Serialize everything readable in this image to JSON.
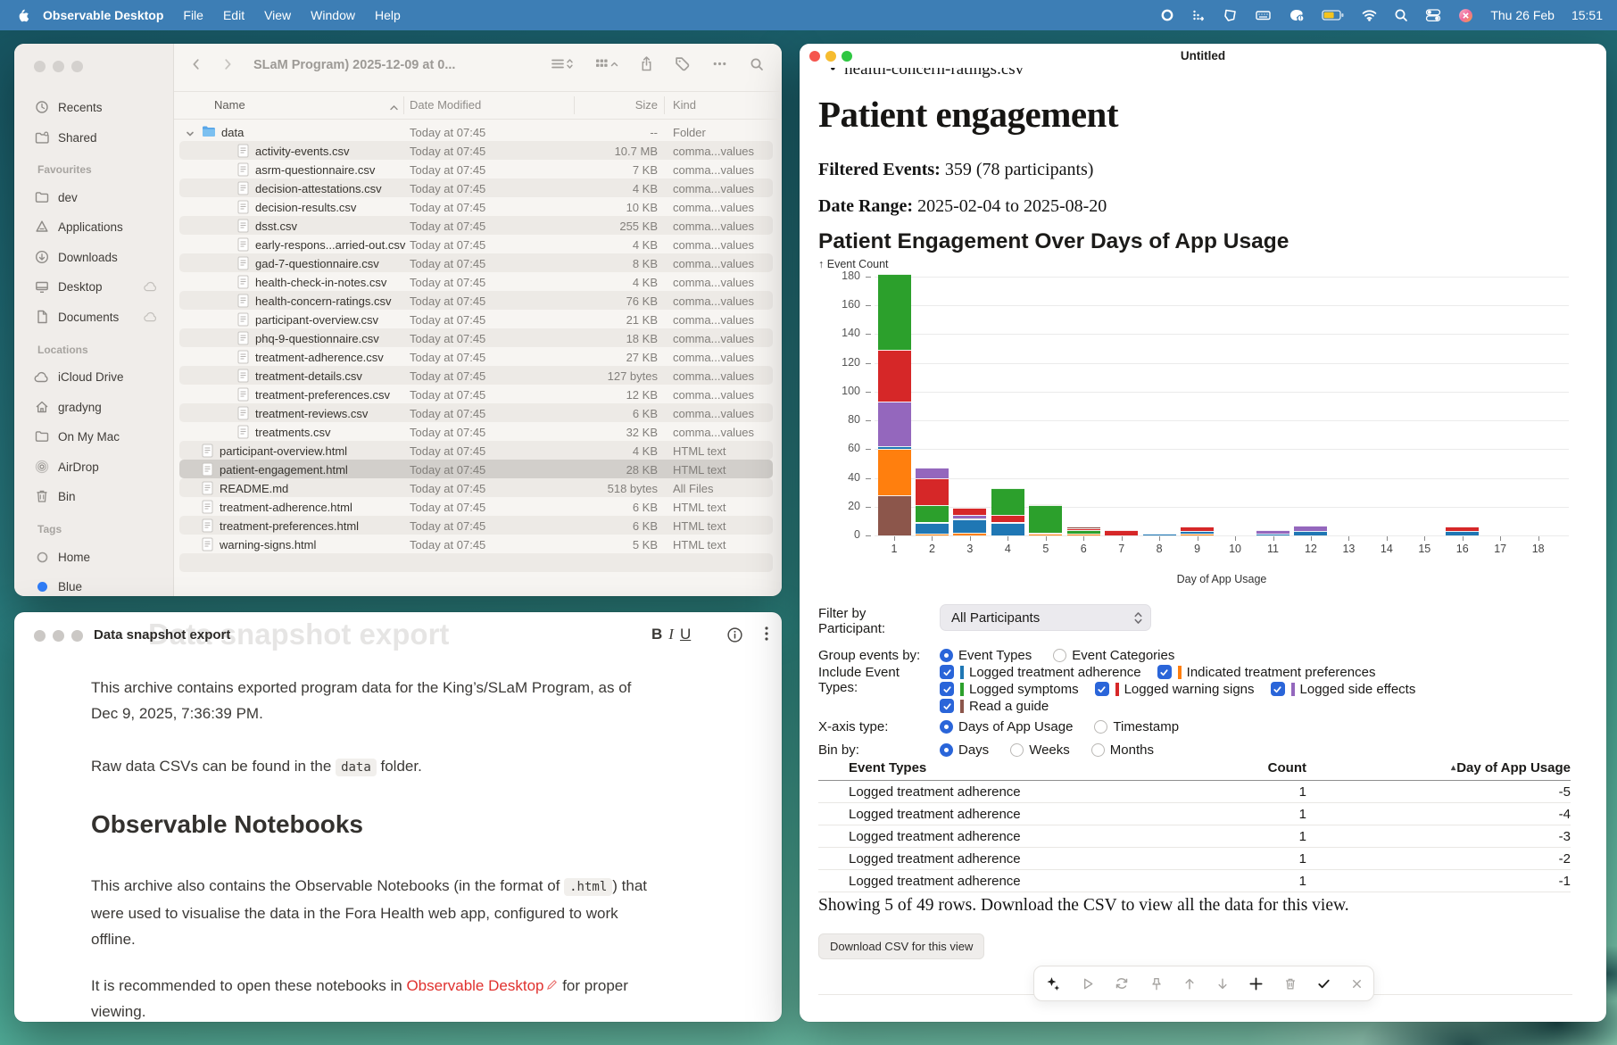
{
  "colors": {
    "menubar_blue": "#3d7eb5",
    "accent_blue": "#2a65d9",
    "link_red": "#e0312e",
    "battery_fill": "#f5c31d",
    "selection_gray": "#d2cfcb"
  },
  "menubar": {
    "app_name": "Observable Desktop",
    "menus": [
      "File",
      "Edit",
      "View",
      "Window",
      "Help"
    ],
    "status_icons": [
      "ring",
      "shortcuts",
      "shape",
      "keyboard",
      "brush-alert",
      "battery",
      "wifi",
      "search",
      "toggles",
      "avatar"
    ],
    "clock_date": "Thu 26 Feb",
    "clock_time": "15:51"
  },
  "finder": {
    "window_title": "SLaM Program) 2025-12-09 at 0...",
    "toolbar_icons": [
      "list-view",
      "grid-view",
      "share",
      "tag",
      "ellipsis",
      "search"
    ],
    "columns": [
      "Name",
      "Date Modified",
      "Size",
      "Kind"
    ],
    "sort_column": "Name",
    "sidebar": {
      "top_items": [
        {
          "label": "Recents",
          "icon": "clock"
        },
        {
          "label": "Shared",
          "icon": "shared-folder"
        }
      ],
      "sections": [
        {
          "title": "Favourites",
          "items": [
            {
              "label": "dev",
              "icon": "folder"
            },
            {
              "label": "Applications",
              "icon": "applications"
            },
            {
              "label": "Downloads",
              "icon": "downloads"
            },
            {
              "label": "Desktop",
              "icon": "desktop",
              "badge": "cloud"
            },
            {
              "label": "Documents",
              "icon": "document",
              "badge": "cloud"
            }
          ]
        },
        {
          "title": "Locations",
          "items": [
            {
              "label": "iCloud Drive",
              "icon": "cloud"
            },
            {
              "label": "gradyng",
              "icon": "home"
            },
            {
              "label": "On My Mac",
              "icon": "folder"
            },
            {
              "label": "AirDrop",
              "icon": "airdrop"
            },
            {
              "label": "Bin",
              "icon": "trash"
            }
          ]
        },
        {
          "title": "Tags",
          "items": [
            {
              "label": "Home",
              "icon": "tag-gray"
            },
            {
              "label": "Blue",
              "icon": "tag-blue"
            }
          ]
        }
      ]
    },
    "rows": [
      {
        "name": "data",
        "date": "Today at 07:45",
        "size": "--",
        "kind": "Folder",
        "icon": "folder-file",
        "indent": 0,
        "disclosure": true
      },
      {
        "name": "activity-events.csv",
        "date": "Today at 07:45",
        "size": "10.7 MB",
        "kind": "comma...values",
        "icon": "doc-file",
        "indent": 1
      },
      {
        "name": "asrm-questionnaire.csv",
        "date": "Today at 07:45",
        "size": "7 KB",
        "kind": "comma...values",
        "icon": "doc-file",
        "indent": 1
      },
      {
        "name": "decision-attestations.csv",
        "date": "Today at 07:45",
        "size": "4 KB",
        "kind": "comma...values",
        "icon": "doc-file",
        "indent": 1
      },
      {
        "name": "decision-results.csv",
        "date": "Today at 07:45",
        "size": "10 KB",
        "kind": "comma...values",
        "icon": "doc-file",
        "indent": 1
      },
      {
        "name": "dsst.csv",
        "date": "Today at 07:45",
        "size": "255 KB",
        "kind": "comma...values",
        "icon": "doc-file",
        "indent": 1
      },
      {
        "name": "early-respons...arried-out.csv",
        "date": "Today at 07:45",
        "size": "4 KB",
        "kind": "comma...values",
        "icon": "doc-file",
        "indent": 1
      },
      {
        "name": "gad-7-questionnaire.csv",
        "date": "Today at 07:45",
        "size": "8 KB",
        "kind": "comma...values",
        "icon": "doc-file",
        "indent": 1
      },
      {
        "name": "health-check-in-notes.csv",
        "date": "Today at 07:45",
        "size": "4 KB",
        "kind": "comma...values",
        "icon": "doc-file",
        "indent": 1
      },
      {
        "name": "health-concern-ratings.csv",
        "date": "Today at 07:45",
        "size": "76 KB",
        "kind": "comma...values",
        "icon": "doc-file",
        "indent": 1
      },
      {
        "name": "participant-overview.csv",
        "date": "Today at 07:45",
        "size": "21 KB",
        "kind": "comma...values",
        "icon": "doc-file",
        "indent": 1
      },
      {
        "name": "phq-9-questionnaire.csv",
        "date": "Today at 07:45",
        "size": "18 KB",
        "kind": "comma...values",
        "icon": "doc-file",
        "indent": 1
      },
      {
        "name": "treatment-adherence.csv",
        "date": "Today at 07:45",
        "size": "27 KB",
        "kind": "comma...values",
        "icon": "doc-file",
        "indent": 1
      },
      {
        "name": "treatment-details.csv",
        "date": "Today at 07:45",
        "size": "127 bytes",
        "kind": "comma...values",
        "icon": "doc-file",
        "indent": 1
      },
      {
        "name": "treatment-preferences.csv",
        "date": "Today at 07:45",
        "size": "12 KB",
        "kind": "comma...values",
        "icon": "doc-file",
        "indent": 1
      },
      {
        "name": "treatment-reviews.csv",
        "date": "Today at 07:45",
        "size": "6 KB",
        "kind": "comma...values",
        "icon": "doc-file",
        "indent": 1
      },
      {
        "name": "treatments.csv",
        "date": "Today at 07:45",
        "size": "32 KB",
        "kind": "comma...values",
        "icon": "doc-file",
        "indent": 1
      },
      {
        "name": "participant-overview.html",
        "date": "Today at 07:45",
        "size": "4 KB",
        "kind": "HTML text",
        "icon": "doc-file",
        "indent": 0
      },
      {
        "name": "patient-engagement.html",
        "date": "Today at 07:45",
        "size": "28 KB",
        "kind": "HTML text",
        "icon": "doc-file",
        "indent": 0,
        "selected": true
      },
      {
        "name": "README.md",
        "date": "Today at 07:45",
        "size": "518 bytes",
        "kind": "All Files",
        "icon": "doc-file",
        "indent": 0
      },
      {
        "name": "treatment-adherence.html",
        "date": "Today at 07:45",
        "size": "6 KB",
        "kind": "HTML text",
        "icon": "doc-file",
        "indent": 0
      },
      {
        "name": "treatment-preferences.html",
        "date": "Today at 07:45",
        "size": "6 KB",
        "kind": "HTML text",
        "icon": "doc-file",
        "indent": 0
      },
      {
        "name": "warning-signs.html",
        "date": "Today at 07:45",
        "size": "5 KB",
        "kind": "HTML text",
        "icon": "doc-file",
        "indent": 0
      }
    ]
  },
  "notes": {
    "title": "Data snapshot export",
    "ghost_heading": "Data snapshot export",
    "format_bold": "B",
    "format_italic": "I",
    "format_underline": "U",
    "p1": "This archive contains exported program data for the King’s/SLaM Program, as of Dec 9, 2025, 7:36:39 PM.",
    "p2": [
      "Raw data CSVs can be found in the ",
      {
        "code": "data"
      },
      " folder."
    ],
    "h2": "Observable Notebooks",
    "p3": [
      "This archive also contains the Observable Notebooks (in the format of ",
      {
        "code": ".html"
      },
      ") that were used to visualise the data in the Fora Health web app, configured to work offline."
    ],
    "p4": [
      "It is recommended to open these notebooks in ",
      {
        "link": "Observable Desktop"
      },
      " for proper viewing."
    ]
  },
  "notebook": {
    "title": "Untitled",
    "visible_list_item": "health-concern-ratings.csv",
    "heading": "Patient engagement",
    "filtered_events_label": "Filtered Events:",
    "filtered_events_value": " 359 (78 participants)",
    "date_range_label": "Date Range:",
    "date_range_value": " 2025-02-04 to 2025-08-20",
    "chart_heading": "Patient Engagement Over Days of App Usage",
    "controls": {
      "filter_label_1": "Filter by",
      "filter_label_2": "Participant:",
      "participant_select": "All Participants",
      "group_label": "Group events by:",
      "group_options": [
        {
          "label": "Event Types",
          "selected": true
        },
        {
          "label": "Event Categories",
          "selected": false
        }
      ],
      "include_label_1": "Include Event",
      "include_label_2": "Types:",
      "event_types": [
        {
          "label": "Logged treatment adherence",
          "color": "#1f77b4",
          "checked": true,
          "row": 0
        },
        {
          "label": "Indicated treatment preferences",
          "color": "#ff7f0e",
          "checked": true,
          "row": 0
        },
        {
          "label": "Logged symptoms",
          "color": "#2ca02c",
          "checked": true,
          "row": 1
        },
        {
          "label": "Logged warning signs",
          "color": "#d62728",
          "checked": true,
          "row": 1
        },
        {
          "label": "Logged side effects",
          "color": "#9467bd",
          "checked": true,
          "row": 1
        },
        {
          "label": "Read a guide",
          "color": "#8c564b",
          "checked": true,
          "row": 2
        }
      ],
      "xaxis_label": "X-axis type:",
      "xaxis_options": [
        {
          "label": "Days of App Usage",
          "selected": true
        },
        {
          "label": "Timestamp",
          "selected": false
        }
      ],
      "bin_label": "Bin by:",
      "bin_options": [
        {
          "label": "Days",
          "selected": true
        },
        {
          "label": "Weeks",
          "selected": false
        },
        {
          "label": "Months",
          "selected": false
        }
      ]
    },
    "table": {
      "headers": [
        "Event Types",
        "Count",
        "Day of App Usage"
      ],
      "sorted_by": "Day of App Usage",
      "rows": [
        [
          "Logged treatment adherence",
          "1",
          "-5"
        ],
        [
          "Logged treatment adherence",
          "1",
          "-4"
        ],
        [
          "Logged treatment adherence",
          "1",
          "-3"
        ],
        [
          "Logged treatment adherence",
          "1",
          "-2"
        ],
        [
          "Logged treatment adherence",
          "1",
          "-1"
        ]
      ]
    },
    "showing_text": "Showing 5 of 49 rows. Download the CSV to view all the data for this view.",
    "download_button": "Download CSV for this view",
    "float_toolbar": [
      {
        "icon": "sparkles",
        "emphasized": true
      },
      {
        "icon": "play",
        "emphasized": false
      },
      {
        "icon": "repeat",
        "emphasized": false
      },
      {
        "icon": "pin",
        "emphasized": false
      },
      {
        "icon": "arrow-up",
        "emphasized": false
      },
      {
        "icon": "arrow-down",
        "emphasized": false
      },
      {
        "icon": "plus",
        "emphasized": true
      },
      {
        "icon": "trash2",
        "emphasized": false
      },
      {
        "icon": "check",
        "emphasized": true
      },
      {
        "icon": "close",
        "emphasized": false
      }
    ]
  },
  "chart_data": {
    "type": "bar",
    "stacked": true,
    "title": "Patient Engagement Over Days of App Usage",
    "xlabel": "Day of App Usage",
    "ylabel": "Event Count",
    "x_categories": [
      1,
      2,
      3,
      4,
      5,
      6,
      7,
      8,
      9,
      10,
      11,
      12,
      13,
      14,
      15,
      16,
      17,
      18
    ],
    "ylim": [
      0,
      180
    ],
    "yticks": [
      0,
      20,
      40,
      60,
      80,
      100,
      120,
      140,
      160,
      180
    ],
    "grid": true,
    "legend_position": "none",
    "legend": [
      {
        "name": "Logged treatment adherence",
        "color": "#1f77b4"
      },
      {
        "name": "Indicated treatment preferences",
        "color": "#ff7f0e"
      },
      {
        "name": "Logged symptoms",
        "color": "#2ca02c"
      },
      {
        "name": "Logged warning signs",
        "color": "#d62728"
      },
      {
        "name": "Logged side effects",
        "color": "#9467bd"
      },
      {
        "name": "Read a guide",
        "color": "#8c564b"
      }
    ],
    "bars": [
      {
        "x": 1,
        "segments": [
          [
            "Read a guide",
            28
          ],
          [
            "Indicated treatment preferences",
            32
          ],
          [
            "Logged treatment adherence",
            2
          ],
          [
            "Logged side effects",
            31
          ],
          [
            "Logged warning signs",
            36
          ],
          [
            "Logged symptoms",
            53
          ]
        ]
      },
      {
        "x": 2,
        "segments": [
          [
            "Indicated treatment preferences",
            1
          ],
          [
            "Logged treatment adherence",
            8
          ],
          [
            "Logged symptoms",
            12
          ],
          [
            "Logged warning signs",
            19
          ],
          [
            "Logged side effects",
            7
          ]
        ]
      },
      {
        "x": 3,
        "segments": [
          [
            "Indicated treatment preferences",
            2
          ],
          [
            "Logged treatment adherence",
            9
          ],
          [
            "Logged symptoms",
            1
          ],
          [
            "Logged side effects",
            2
          ],
          [
            "Logged warning signs",
            5
          ]
        ]
      },
      {
        "x": 4,
        "segments": [
          [
            "Logged treatment adherence",
            9
          ],
          [
            "Logged warning signs",
            5
          ],
          [
            "Logged symptoms",
            19
          ]
        ]
      },
      {
        "x": 5,
        "segments": [
          [
            "Indicated treatment preferences",
            1
          ],
          [
            "Logged warning signs",
            1
          ],
          [
            "Logged symptoms",
            19
          ],
          [
            "Read a guide",
            1
          ]
        ]
      },
      {
        "x": 6,
        "segments": [
          [
            "Indicated treatment preferences",
            1
          ],
          [
            "Logged symptoms",
            3
          ],
          [
            "Logged warning signs",
            1
          ],
          [
            "Read a guide",
            1
          ]
        ]
      },
      {
        "x": 7,
        "segments": [
          [
            "Logged warning signs",
            4
          ]
        ]
      },
      {
        "x": 8,
        "segments": [
          [
            "Logged treatment adherence",
            1
          ]
        ]
      },
      {
        "x": 9,
        "segments": [
          [
            "Indicated treatment preferences",
            1
          ],
          [
            "Logged treatment adherence",
            2
          ],
          [
            "Logged warning signs",
            3
          ]
        ]
      },
      {
        "x": 10,
        "segments": []
      },
      {
        "x": 11,
        "segments": [
          [
            "Logged treatment adherence",
            1
          ],
          [
            "Logged side effects",
            3
          ]
        ]
      },
      {
        "x": 12,
        "segments": [
          [
            "Logged treatment adherence",
            3
          ],
          [
            "Logged side effects",
            4
          ]
        ]
      },
      {
        "x": 13,
        "segments": []
      },
      {
        "x": 14,
        "segments": []
      },
      {
        "x": 15,
        "segments": []
      },
      {
        "x": 16,
        "segments": [
          [
            "Logged treatment adherence",
            3
          ],
          [
            "Logged warning signs",
            3
          ]
        ]
      },
      {
        "x": 17,
        "segments": []
      },
      {
        "x": 18,
        "segments": []
      }
    ]
  }
}
